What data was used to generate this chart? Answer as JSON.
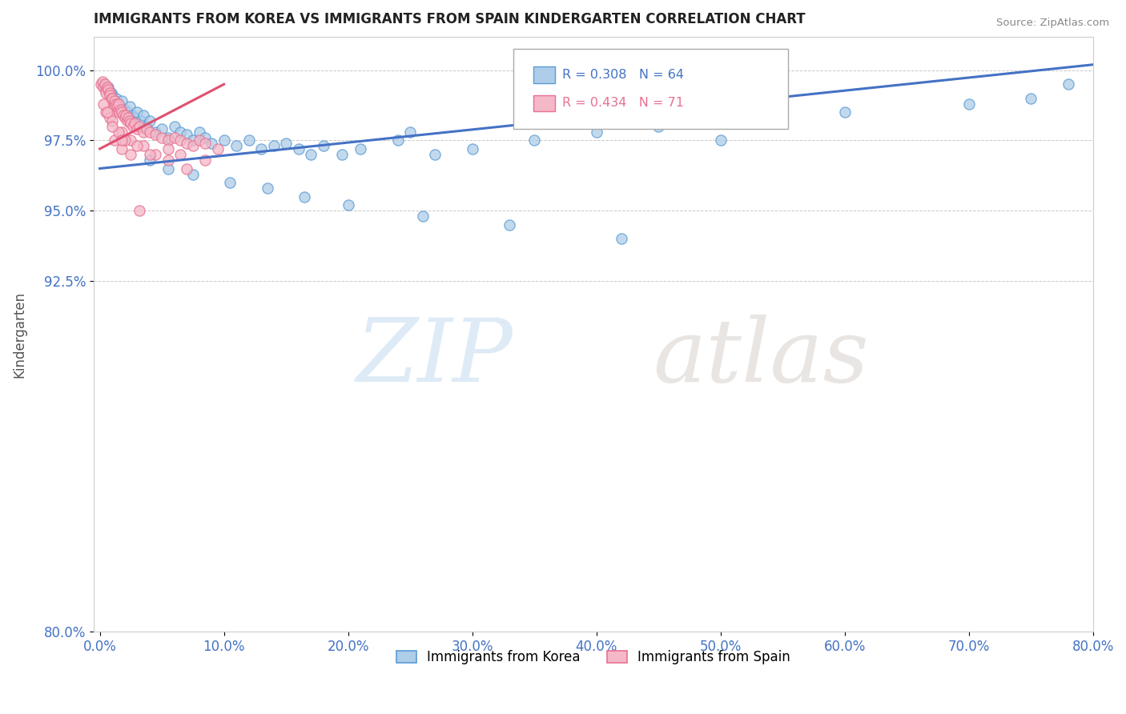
{
  "title": "IMMIGRANTS FROM KOREA VS IMMIGRANTS FROM SPAIN KINDERGARTEN CORRELATION CHART",
  "source": "Source: ZipAtlas.com",
  "xlabel": "",
  "ylabel": "Kindergarten",
  "xlim": [
    -0.5,
    80.0
  ],
  "ylim": [
    80.0,
    101.2
  ],
  "yticks": [
    80.0,
    92.5,
    95.0,
    97.5,
    100.0
  ],
  "xticks": [
    0.0,
    10.0,
    20.0,
    30.0,
    40.0,
    50.0,
    60.0,
    70.0,
    80.0
  ],
  "korea_R": 0.308,
  "korea_N": 64,
  "spain_R": 0.434,
  "spain_N": 71,
  "korea_color": "#aecde8",
  "spain_color": "#f4b8c8",
  "korea_edge_color": "#5b9bd5",
  "spain_edge_color": "#e87090",
  "korea_line_color": "#4472c4",
  "spain_line_color": "#e05070",
  "legend_korea_text": "Immigrants from Korea",
  "legend_spain_text": "Immigrants from Spain",
  "title_color": "#222222",
  "axis_label_color": "#4472c4",
  "grid_color": "#bbbbbb",
  "korea_x": [
    0.3,
    0.5,
    0.7,
    0.9,
    1.0,
    1.2,
    1.3,
    1.5,
    1.6,
    1.8,
    2.0,
    2.2,
    2.4,
    2.6,
    2.8,
    3.0,
    3.3,
    3.5,
    3.8,
    4.0,
    4.5,
    5.0,
    5.5,
    6.0,
    6.5,
    7.0,
    7.5,
    8.0,
    8.5,
    9.0,
    10.0,
    11.0,
    12.0,
    13.0,
    14.0,
    15.0,
    16.0,
    17.0,
    18.0,
    19.5,
    21.0,
    24.0,
    25.0,
    27.0,
    30.0,
    35.0,
    40.0,
    45.0,
    50.0,
    55.0,
    60.0,
    70.0,
    75.0,
    78.0,
    4.0,
    5.5,
    7.5,
    10.5,
    13.5,
    16.5,
    20.0,
    26.0,
    33.0,
    42.0
  ],
  "korea_y": [
    99.5,
    99.3,
    99.4,
    99.2,
    99.1,
    98.9,
    99.0,
    98.8,
    98.7,
    98.9,
    98.6,
    98.5,
    98.7,
    98.4,
    98.3,
    98.5,
    98.2,
    98.4,
    98.0,
    98.2,
    97.8,
    97.9,
    97.6,
    98.0,
    97.8,
    97.7,
    97.5,
    97.8,
    97.6,
    97.4,
    97.5,
    97.3,
    97.5,
    97.2,
    97.3,
    97.4,
    97.2,
    97.0,
    97.3,
    97.0,
    97.2,
    97.5,
    97.8,
    97.0,
    97.2,
    97.5,
    97.8,
    98.0,
    97.5,
    98.2,
    98.5,
    98.8,
    99.0,
    99.5,
    96.8,
    96.5,
    96.3,
    96.0,
    95.8,
    95.5,
    95.2,
    94.8,
    94.5,
    94.0
  ],
  "spain_x": [
    0.1,
    0.2,
    0.3,
    0.4,
    0.5,
    0.5,
    0.6,
    0.7,
    0.8,
    0.8,
    0.9,
    1.0,
    1.0,
    1.1,
    1.2,
    1.2,
    1.3,
    1.4,
    1.5,
    1.5,
    1.6,
    1.7,
    1.8,
    1.9,
    2.0,
    2.1,
    2.2,
    2.3,
    2.4,
    2.5,
    2.7,
    2.8,
    3.0,
    3.2,
    3.5,
    3.8,
    4.0,
    4.5,
    5.0,
    5.5,
    6.0,
    6.5,
    7.0,
    7.5,
    8.0,
    8.5,
    9.5,
    1.8,
    2.5,
    3.5,
    4.5,
    5.5,
    6.5,
    0.5,
    0.8,
    1.0,
    1.2,
    1.5,
    1.8,
    2.0,
    2.5,
    3.0,
    4.0,
    5.5,
    7.0,
    8.5,
    0.3,
    0.6,
    1.0,
    1.8,
    3.2
  ],
  "spain_y": [
    99.5,
    99.6,
    99.4,
    99.5,
    99.3,
    99.2,
    99.4,
    99.3,
    99.2,
    99.1,
    99.0,
    98.9,
    99.0,
    98.8,
    98.9,
    98.7,
    98.8,
    98.7,
    98.6,
    98.8,
    98.5,
    98.6,
    98.5,
    98.4,
    98.3,
    98.4,
    98.2,
    98.3,
    98.2,
    98.1,
    98.0,
    98.1,
    97.9,
    98.0,
    97.8,
    97.9,
    97.8,
    97.7,
    97.6,
    97.5,
    97.6,
    97.5,
    97.4,
    97.3,
    97.5,
    97.4,
    97.2,
    97.8,
    97.5,
    97.3,
    97.0,
    97.2,
    97.0,
    98.5,
    98.3,
    98.2,
    97.5,
    97.8,
    97.2,
    97.5,
    97.0,
    97.3,
    97.0,
    96.8,
    96.5,
    96.8,
    98.8,
    98.5,
    98.0,
    97.5,
    95.0
  ],
  "korea_line_x0": 0.0,
  "korea_line_y0": 96.5,
  "korea_line_x1": 80.0,
  "korea_line_y1": 100.2,
  "spain_line_x0": 0.0,
  "spain_line_y0": 97.2,
  "spain_line_x1": 10.0,
  "spain_line_y1": 99.5
}
